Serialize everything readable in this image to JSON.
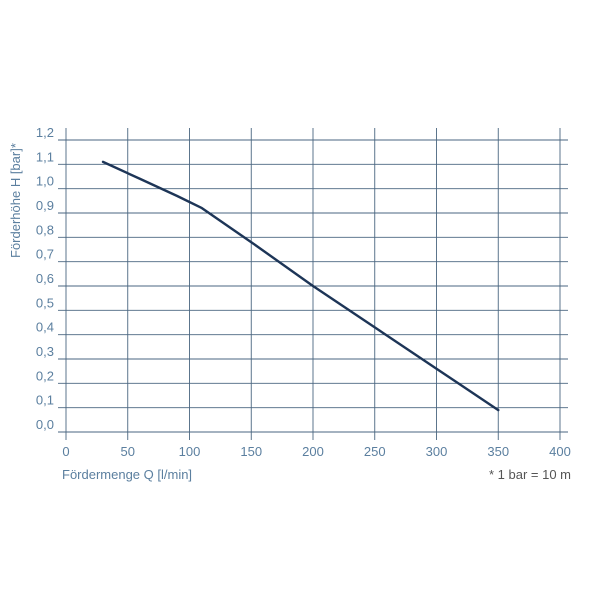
{
  "chart_data": {
    "type": "line",
    "xlabel": "Fördermenge Q [l/min]",
    "ylabel": "Förderhöhe H [bar]*",
    "footnote": "* 1 bar = 10 m",
    "xlim": [
      0,
      400
    ],
    "ylim": [
      0,
      1.2
    ],
    "x_ticks": [
      0,
      50,
      100,
      150,
      200,
      250,
      300,
      350,
      400
    ],
    "y_ticks": [
      0.0,
      0.1,
      0.2,
      0.3,
      0.4,
      0.5,
      0.6,
      0.7,
      0.8,
      0.9,
      1.0,
      1.1,
      1.2
    ],
    "x_tick_labels": [
      "0",
      "50",
      "100",
      "150",
      "200",
      "250",
      "300",
      "350",
      "400"
    ],
    "y_tick_labels": [
      "0,0",
      "0,1",
      "0,2",
      "0,3",
      "0,4",
      "0,5",
      "0,6",
      "0,7",
      "0,8",
      "0,9",
      "1,0",
      "1,1",
      "1,2"
    ],
    "grid": true,
    "series": [
      {
        "x": [
          30,
          60,
          90,
          110,
          150,
          200,
          250,
          300,
          350
        ],
        "y": [
          1.11,
          1.04,
          0.97,
          0.92,
          0.78,
          0.6,
          0.43,
          0.26,
          0.09
        ]
      }
    ],
    "colors": {
      "line": "#1d3557",
      "grid": "#4a6680",
      "text": "#5b7f9f",
      "footnote": "#555555"
    }
  }
}
